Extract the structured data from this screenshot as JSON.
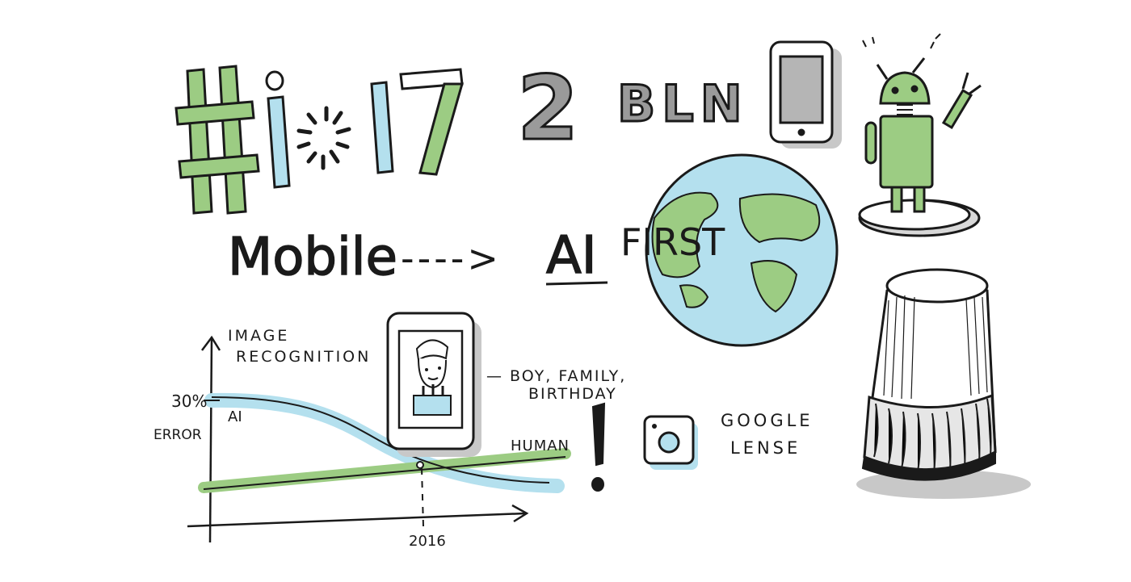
{
  "header": {
    "hashtag": "#",
    "i_letter": "i",
    "number": "17",
    "users_count": "2",
    "users_unit": "BLN"
  },
  "strategy": {
    "from": "Mobile",
    "arrow": "---->",
    "to_ai": "AI",
    "to_first": "FIRST"
  },
  "graph": {
    "title_line1": "IMAGE",
    "title_line2": "RECOGNITION",
    "y_tick": "30%",
    "y_label": "ERROR",
    "ai_label": "AI",
    "human_label": "HUMAN",
    "x_tick": "2016"
  },
  "phone_caption": {
    "line1": "— BOY, FAMILY,",
    "line2": "BIRTHDAY"
  },
  "exclamation": "!",
  "lens": {
    "line1": "GOOGLE",
    "line2": "LENSE"
  },
  "colors": {
    "ink": "#1a1a1a",
    "green": "#9ccc83",
    "blue": "#b4e0ee",
    "gray": "#9a9a9a",
    "lightgray": "#c8c8c8"
  },
  "icons": [
    "phone-icon",
    "android-robot-icon",
    "globe-icon",
    "google-home-icon",
    "camera-icon"
  ]
}
